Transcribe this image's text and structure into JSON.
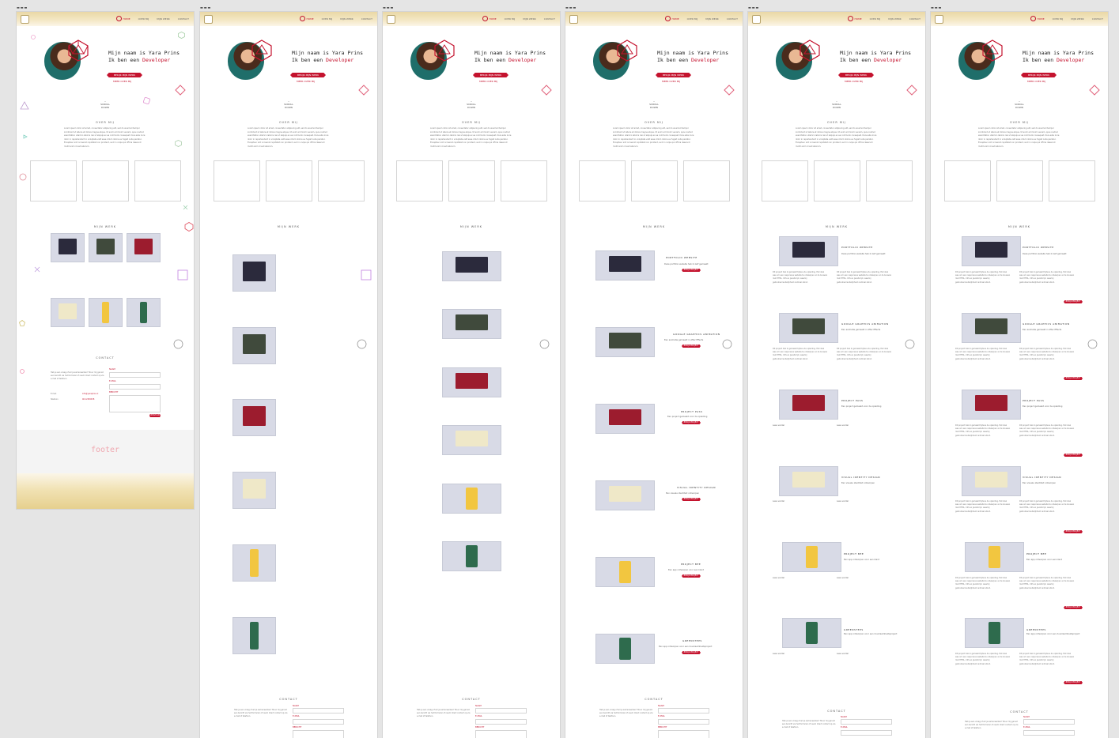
{
  "artboards": [
    {
      "label": "▬▬▬"
    },
    {
      "label": "▬▬▬"
    },
    {
      "label": "▬▬▬"
    },
    {
      "label": "▬▬▬"
    },
    {
      "label": "▬▬▬"
    },
    {
      "label": "▬▬▬"
    }
  ],
  "nav": {
    "items": [
      "Home",
      "Over mij",
      "Mijn werk",
      "Contact"
    ]
  },
  "hero": {
    "name_line": "Mijn naam is Yara Prins",
    "role_prefix": "Ik ben een ",
    "role_accent": "Developer",
    "cta_label": "BEKIJK MIJN WERK",
    "secondary_link": "MEER OVER MIJ",
    "scroll_label": "SCROLL DOWN"
  },
  "about": {
    "title": "OVER MIJ",
    "text": "Lorem ipsum dolor sit amet, consectetur adipiscing elit, sed do eiusmod tempor incididunt ut labore et dolore magna aliqua. Ut enim ad minim veniam, quis nostrud exercitation ullamco laboris nisi ut aliquip ex ea commodo consequat. Duis aute irure dolor in reprehenderit in voluptate velit esse cillum dolore eu fugiat nulla pariatur. Excepteur sint occaecat cupidatat non proident, sunt in culpa qui officia deserunt mollit anim id est laborum."
  },
  "work": {
    "title": "MIJN WERK",
    "projects": [
      {
        "title": "PORTFOLIO WEBSITE",
        "subtitle": "Deze portfolio website heb ik zelf gemaakt",
        "button": "BEKIJK PROJECT"
      },
      {
        "title": "GOOGLE GRAPHICS ANIMATION",
        "subtitle": "Een animatie gemaakt in After Effects",
        "button": "BEKIJK PROJECT"
      },
      {
        "title": "PROJECT PASS",
        "subtitle": "Een project gemaakt voor de opleiding",
        "button": "BEKIJK PROJECT"
      },
      {
        "title": "VISUAL IDENTITY DESIGN",
        "subtitle": "Een visuele identiteit ontworpen",
        "button": "BEKIJK PROJECT"
      },
      {
        "title": "PROJECT BEE",
        "subtitle": "Een app ontworpen voor een klant",
        "button": "BEKIJK PROJECT"
      },
      {
        "title": "GREENSTEPS",
        "subtitle": "Een app ontworpen voor een duurzaamheidsproject",
        "button": "BEKIJK PROJECT"
      }
    ],
    "paragraph": "Dit project heb ik gemaakt tijdens de opleiding. Het doel was om een responsive website te ontwerpen en te bouwen met HTML, CSS en JavaScript, waarbij gebruiksvriendelijkheid centraal stond.",
    "caption": "Lees verder"
  },
  "contact": {
    "title": "CONTACT",
    "text": "Heb je een vraag of wil je samenwerken? Stuur mij gerust een bericht via het formulier of neem direct contact op via e-mail of telefoon.",
    "email_label": "E-mail",
    "phone_label": "Telefoon",
    "email_value": "info@yaraprins.nl",
    "phone_value": "06 12345678",
    "fields": [
      "NAAM",
      "E-MAIL",
      "BERICHT"
    ],
    "send_label": "VERSTUUR"
  },
  "footer": {
    "label": "footer"
  },
  "colors": {
    "accent": "#c4132e",
    "page_bg": "#e5e5e5",
    "sand": "#ead8a6"
  }
}
